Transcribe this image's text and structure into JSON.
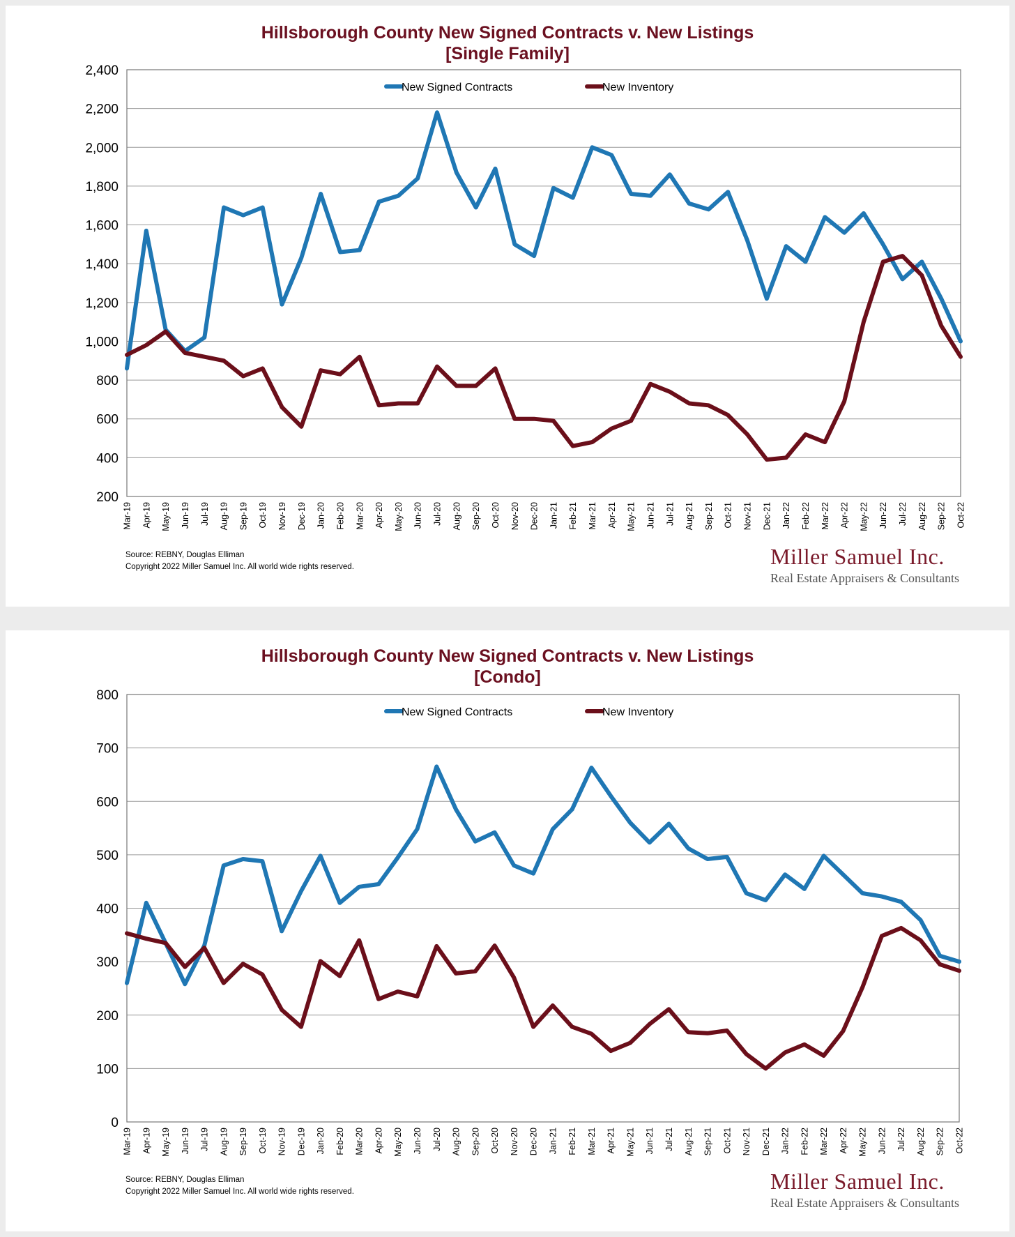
{
  "chart_data": [
    {
      "type": "line",
      "title": "Hillsborough County New Signed Contracts v. New Listings",
      "subtitle": "[Single Family]",
      "ylim": [
        200,
        2400
      ],
      "y_ticks": [
        200,
        400,
        600,
        800,
        1000,
        1200,
        1400,
        1600,
        1800,
        2000,
        2200,
        2400
      ],
      "y_tick_labels": [
        "200",
        "400",
        "600",
        "800",
        "1,000",
        "1,200",
        "1,400",
        "1,600",
        "1,800",
        "2,000",
        "2,200",
        "2,400"
      ],
      "grid": true,
      "legend": "top-center",
      "categories": [
        "Mar-19",
        "Apr-19",
        "May-19",
        "Jun-19",
        "Jul-19",
        "Aug-19",
        "Sep-19",
        "Oct-19",
        "Nov-19",
        "Dec-19",
        "Jan-20",
        "Feb-20",
        "Mar-20",
        "Apr-20",
        "May-20",
        "Jun-20",
        "Jul-20",
        "Aug-20",
        "Sep-20",
        "Oct-20",
        "Nov-20",
        "Dec-20",
        "Jan-21",
        "Feb-21",
        "Mar-21",
        "Apr-21",
        "May-21",
        "Jun-21",
        "Jul-21",
        "Aug-21",
        "Sep-21",
        "Oct-21",
        "Nov-21",
        "Dec-21",
        "Jan-22",
        "Feb-22",
        "Mar-22",
        "Apr-22",
        "May-22",
        "Jun-22",
        "Jul-22",
        "Aug-22",
        "Sep-22",
        "Oct-22"
      ],
      "series": [
        {
          "name": "New Signed Contracts",
          "color": "#1f77b4",
          "values": [
            860,
            1570,
            1060,
            950,
            1020,
            1690,
            1650,
            1690,
            1190,
            1430,
            1760,
            1460,
            1470,
            1720,
            1750,
            1840,
            2180,
            1870,
            1690,
            1890,
            1500,
            1440,
            1790,
            1740,
            2000,
            1960,
            1760,
            1750,
            1860,
            1710,
            1680,
            1770,
            1520,
            1220,
            1490,
            1410,
            1640,
            1560,
            1660,
            1500,
            1320,
            1410,
            1220,
            1000
          ]
        },
        {
          "name": "New Inventory",
          "color": "#6b0f1a",
          "values": [
            930,
            980,
            1050,
            940,
            920,
            900,
            820,
            860,
            660,
            560,
            850,
            830,
            920,
            670,
            680,
            680,
            870,
            770,
            770,
            860,
            600,
            600,
            590,
            460,
            480,
            550,
            590,
            780,
            740,
            680,
            670,
            620,
            520,
            390,
            400,
            520,
            480,
            690,
            1100,
            1410,
            1440,
            1340,
            1080,
            920
          ]
        }
      ],
      "source": "Source: REBNY, Douglas Elliman",
      "copyright": "Copyright 2022 Miller Samuel Inc.  All world wide rights reserved.",
      "brand_name": "Miller Samuel Inc.",
      "brand_tagline": "Real Estate Appraisers & Consultants"
    },
    {
      "type": "line",
      "title": "Hillsborough County New Signed Contracts v. New Listings",
      "subtitle": "[Condo]",
      "ylim": [
        0,
        800
      ],
      "y_ticks": [
        0,
        100,
        200,
        300,
        400,
        500,
        600,
        700,
        800
      ],
      "y_tick_labels": [
        "0",
        "100",
        "200",
        "300",
        "400",
        "500",
        "600",
        "700",
        "800"
      ],
      "grid": true,
      "legend": "top-center",
      "categories": [
        "Mar-19",
        "Apr-19",
        "May-19",
        "Jun-19",
        "Jul-19",
        "Aug-19",
        "Sep-19",
        "Oct-19",
        "Nov-19",
        "Dec-19",
        "Jan-20",
        "Feb-20",
        "Mar-20",
        "Apr-20",
        "May-20",
        "Jun-20",
        "Jul-20",
        "Aug-20",
        "Sep-20",
        "Oct-20",
        "Nov-20",
        "Dec-20",
        "Jan-21",
        "Feb-21",
        "Mar-21",
        "Apr-21",
        "May-21",
        "Jun-21",
        "Jul-21",
        "Aug-21",
        "Sep-21",
        "Oct-21",
        "Nov-21",
        "Dec-21",
        "Jan-22",
        "Feb-22",
        "Mar-22",
        "Apr-22",
        "May-22",
        "Jun-22",
        "Jul-22",
        "Aug-22",
        "Sep-22",
        "Oct-22"
      ],
      "series": [
        {
          "name": "New Signed Contracts",
          "color": "#1f77b4",
          "values": [
            260,
            410,
            335,
            258,
            330,
            480,
            492,
            488,
            357,
            432,
            498,
            410,
            440,
            445,
            495,
            548,
            665,
            585,
            525,
            542,
            480,
            465,
            548,
            585,
            663,
            610,
            560,
            523,
            558,
            512,
            492,
            496,
            428,
            415,
            463,
            436,
            498,
            463,
            428,
            422,
            412,
            378,
            311,
            300
          ]
        },
        {
          "name": "New Inventory",
          "color": "#6b0f1a",
          "values": [
            353,
            343,
            335,
            290,
            326,
            260,
            296,
            276,
            210,
            178,
            301,
            273,
            340,
            230,
            244,
            235,
            329,
            278,
            282,
            330,
            270,
            178,
            218,
            178,
            165,
            133,
            148,
            183,
            211,
            168,
            166,
            171,
            127,
            100,
            130,
            145,
            124,
            170,
            252,
            348,
            363,
            340,
            295,
            283
          ]
        }
      ],
      "source": "Source: REBNY, Douglas Elliman",
      "copyright": "Copyright 2022 Miller Samuel Inc.  All world wide rights reserved.",
      "brand_name": "Miller Samuel Inc.",
      "brand_tagline": "Real Estate Appraisers & Consultants"
    }
  ]
}
